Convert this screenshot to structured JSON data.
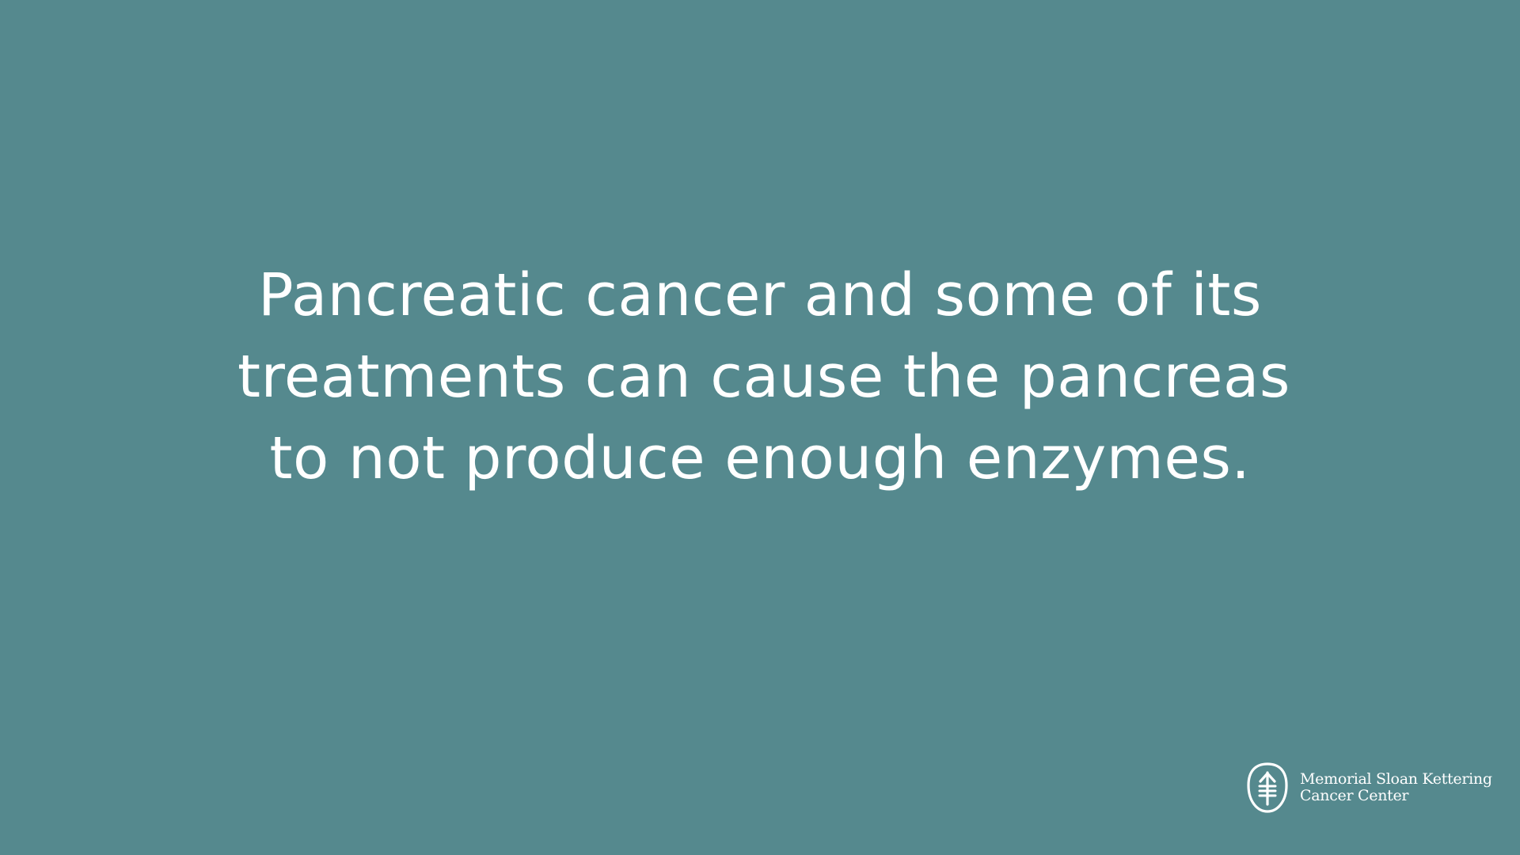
{
  "slide": {
    "background_color": "#55898e",
    "text_color": "#ffffff",
    "message_lines": [
      "Pancreatic cancer and some of its",
      "treatments can cause the pancreas",
      "to not produce enough enzymes."
    ]
  },
  "logo": {
    "icon": "msk-tree-logo-icon",
    "name_line_1": "Memorial Sloan Kettering",
    "name_line_2": "Cancer Center"
  }
}
